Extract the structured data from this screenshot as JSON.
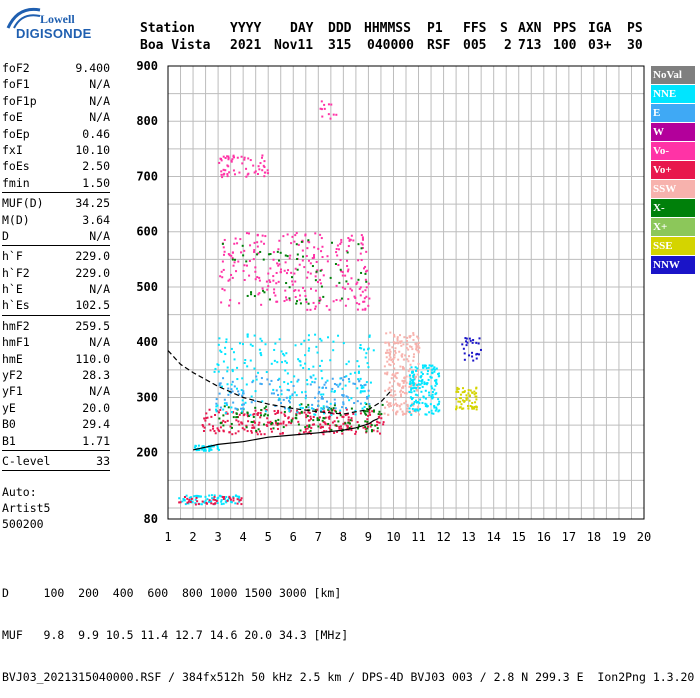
{
  "logo": {
    "line1": "Lowell",
    "line2": "DIGISONDE"
  },
  "header": {
    "labels": [
      "Station",
      "YYYY",
      "DAY",
      "DDD",
      "HHMMSS",
      "P1",
      "FFS",
      "S",
      "AXN",
      "PPS",
      "IGA",
      "PS"
    ],
    "values": [
      "Boa Vista",
      "2021",
      "Nov11",
      "315",
      "040000",
      "RSF",
      "005",
      "2",
      "713",
      "100",
      "03+",
      "30"
    ]
  },
  "params": [
    {
      "name": "foF2",
      "value": "9.400"
    },
    {
      "name": "foF1",
      "value": "N/A"
    },
    {
      "name": "foF1p",
      "value": "N/A"
    },
    {
      "name": "foE",
      "value": "N/A"
    },
    {
      "name": "foEp",
      "value": "0.46"
    },
    {
      "name": "fxI",
      "value": "10.10"
    },
    {
      "name": "foEs",
      "value": "2.50"
    },
    {
      "name": "fmin",
      "value": "1.50"
    },
    {
      "sep": true
    },
    {
      "name": "MUF(D)",
      "value": "34.25"
    },
    {
      "name": "M(D)",
      "value": "3.64"
    },
    {
      "name": "D",
      "value": "N/A"
    },
    {
      "sep": true
    },
    {
      "name": "h`F",
      "value": "229.0"
    },
    {
      "name": "h`F2",
      "value": "229.0"
    },
    {
      "name": "h`E",
      "value": "N/A"
    },
    {
      "name": "h`Es",
      "value": "102.5"
    },
    {
      "sep": true
    },
    {
      "name": "hmF2",
      "value": "259.5"
    },
    {
      "name": "hmF1",
      "value": "N/A"
    },
    {
      "name": "hmE",
      "value": "110.0"
    },
    {
      "name": "yF2",
      "value": "28.3"
    },
    {
      "name": "yF1",
      "value": "N/A"
    },
    {
      "name": "yE",
      "value": "20.0"
    },
    {
      "name": "B0",
      "value": "29.4"
    },
    {
      "name": "B1",
      "value": "1.71"
    },
    {
      "sep": true
    },
    {
      "name": "C-level",
      "value": "33"
    },
    {
      "sep": true
    }
  ],
  "autoscale": {
    "line1": "Auto:",
    "line2": "Artist5",
    "line3": "500200"
  },
  "footer": {
    "line1": "D     100  200  400  600  800 1000 1500 3000 [km]",
    "line2": "MUF   9.8  9.9 10.5 11.4 12.7 14.6 20.0 34.3 [MHz]",
    "line3": "BVJ03_2021315040000.RSF / 384fx512h 50 kHz 2.5 km / DPS-4D BVJ03 003 / 2.8 N 299.3 E  Ion2Png 1.3.20"
  },
  "legend": [
    {
      "label": "NoVal",
      "color": "#7f7f7f"
    },
    {
      "label": "NNE",
      "color": "#00e5ff"
    },
    {
      "label": "E",
      "color": "#3fa9f5"
    },
    {
      "label": "W",
      "color": "#b3009b"
    },
    {
      "label": "Vo-",
      "color": "#ff33a6"
    },
    {
      "label": "Vo+",
      "color": "#e8174d"
    },
    {
      "label": "SSW",
      "color": "#f7b2ad"
    },
    {
      "label": "X-",
      "color": "#00800a"
    },
    {
      "label": "X+",
      "color": "#8cc75a"
    },
    {
      "label": "SSE",
      "color": "#d4d400"
    },
    {
      "label": "NNW",
      "color": "#1a14c8"
    }
  ],
  "chart_data": {
    "type": "scatter",
    "title": "",
    "xlabel": "",
    "ylabel": "",
    "xlim": [
      1,
      20
    ],
    "ylim": [
      80,
      900
    ],
    "x_ticks": [
      1,
      2,
      3,
      4,
      5,
      6,
      7,
      8,
      9,
      10,
      11,
      12,
      13,
      14,
      15,
      16,
      17,
      18,
      19,
      20
    ],
    "y_ticks": [
      80,
      200,
      300,
      400,
      500,
      600,
      700,
      800,
      900
    ],
    "grid": true,
    "ordinary_trace": [
      [
        2.0,
        205
      ],
      [
        2.5,
        210
      ],
      [
        3.0,
        215
      ],
      [
        4.0,
        220
      ],
      [
        5.0,
        228
      ],
      [
        6.0,
        232
      ],
      [
        7.0,
        236
      ],
      [
        8.0,
        241
      ],
      [
        8.5,
        245
      ],
      [
        9.0,
        252
      ],
      [
        9.2,
        258
      ],
      [
        9.4,
        262
      ]
    ],
    "extraordinary_trace": [
      [
        1.0,
        385
      ],
      [
        1.5,
        360
      ],
      [
        2.0,
        345
      ],
      [
        3.0,
        320
      ],
      [
        4.0,
        300
      ],
      [
        5.0,
        288
      ],
      [
        6.0,
        280
      ],
      [
        7.0,
        274
      ],
      [
        8.0,
        270
      ],
      [
        9.0,
        278
      ],
      [
        9.5,
        292
      ],
      [
        9.9,
        312
      ]
    ],
    "echo_clusters": [
      {
        "series": "Vo+",
        "x": [
          2.3,
          9.6
        ],
        "y": [
          235,
          280
        ],
        "count": 260
      },
      {
        "series": "X-",
        "x": [
          3.0,
          9.6
        ],
        "y": [
          240,
          290
        ],
        "count": 120
      },
      {
        "series": "NNE",
        "x": [
          2.8,
          9.2
        ],
        "y": [
          270,
          420
        ],
        "count": 220
      },
      {
        "series": "E",
        "x": [
          2.8,
          9.0
        ],
        "y": [
          280,
          340
        ],
        "count": 120
      },
      {
        "series": "SSW",
        "x": [
          9.6,
          11.0
        ],
        "y": [
          270,
          420
        ],
        "count": 230
      },
      {
        "series": "NNE",
        "x": [
          10.6,
          11.8
        ],
        "y": [
          270,
          360
        ],
        "count": 160
      },
      {
        "series": "SSE",
        "x": [
          12.4,
          13.3
        ],
        "y": [
          280,
          320
        ],
        "count": 60
      },
      {
        "series": "NNW",
        "x": [
          12.7,
          13.5
        ],
        "y": [
          365,
          410
        ],
        "count": 25
      },
      {
        "series": "Vo-",
        "x": [
          3.0,
          9.0
        ],
        "y": [
          460,
          600
        ],
        "count": 260
      },
      {
        "series": "X-",
        "x": [
          3.0,
          9.0
        ],
        "y": [
          470,
          590
        ],
        "count": 60
      },
      {
        "series": "Vo-",
        "x": [
          3.0,
          5.0
        ],
        "y": [
          700,
          740
        ],
        "count": 60
      },
      {
        "series": "Vo-",
        "x": [
          7.0,
          7.8
        ],
        "y": [
          800,
          840
        ],
        "count": 12
      },
      {
        "series": "NNE",
        "x": [
          2.0,
          3.0
        ],
        "y": [
          205,
          215
        ],
        "count": 40
      },
      {
        "series": "NNE",
        "x": [
          1.4,
          3.9
        ],
        "y": [
          108,
          125
        ],
        "count": 70
      },
      {
        "series": "Vo+",
        "x": [
          1.4,
          3.9
        ],
        "y": [
          108,
          122
        ],
        "count": 40
      }
    ]
  }
}
